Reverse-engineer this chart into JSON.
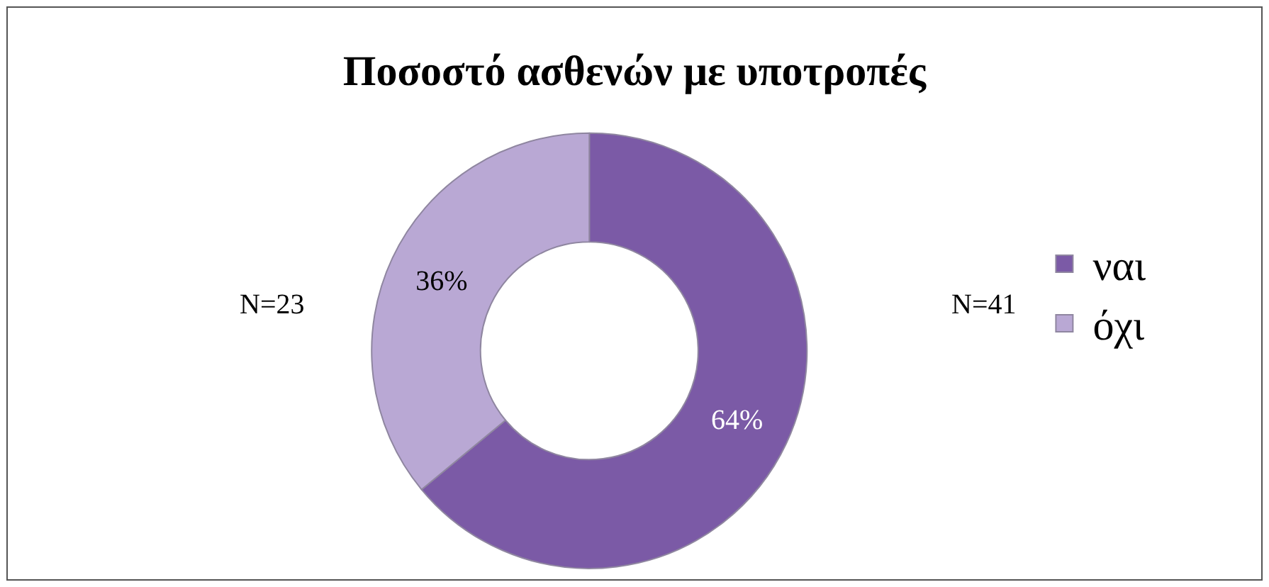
{
  "chart_data": {
    "type": "donut",
    "title": "Ποσοστό ασθενών με υποτροπές",
    "categories": [
      "ναι",
      "όχι"
    ],
    "values": [
      64,
      36
    ],
    "colors": [
      "#7b5aa6",
      "#b9a8d4"
    ],
    "value_labels": [
      "64%",
      "36%"
    ],
    "annotations": [
      "N=41",
      "N=23"
    ],
    "legend": "right"
  }
}
